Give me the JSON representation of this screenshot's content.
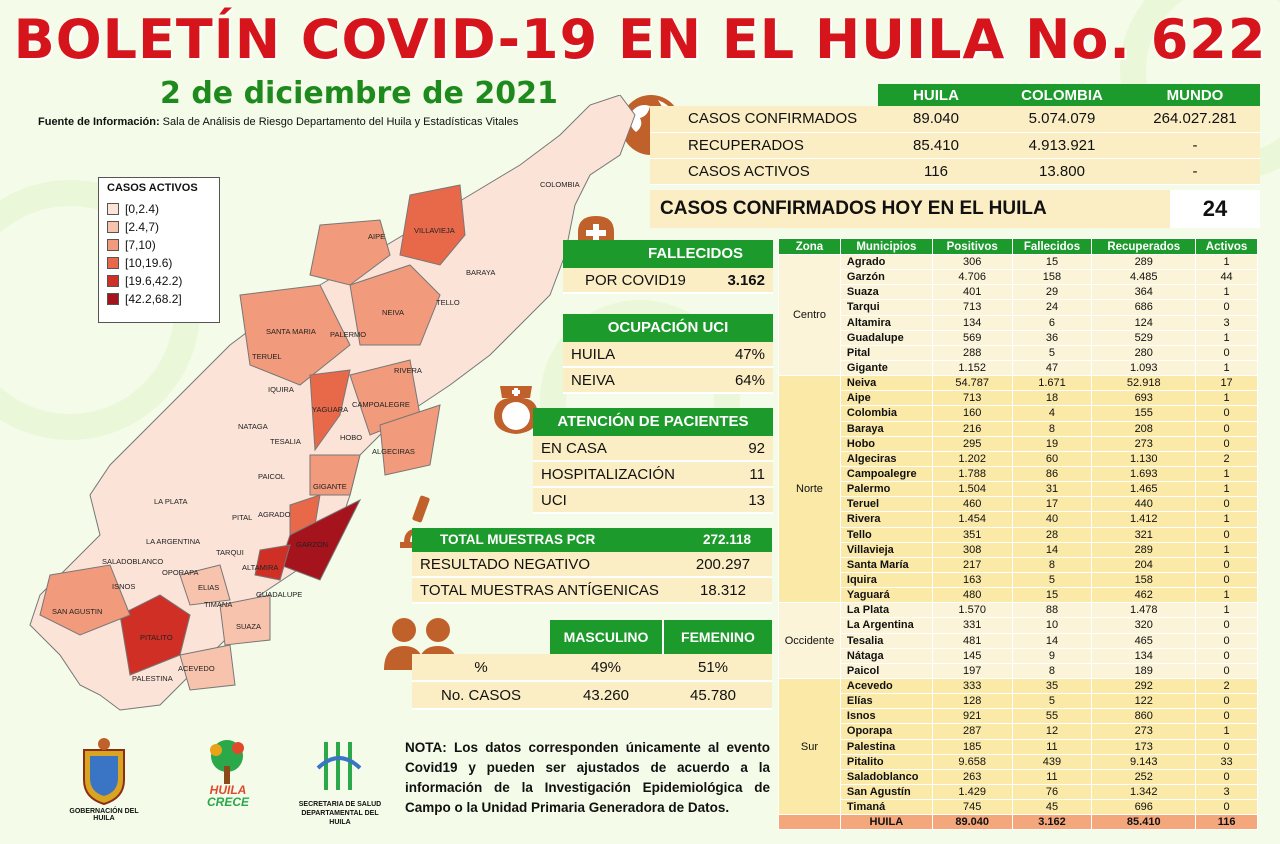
{
  "title": "BOLETÍN COVID-19 EN EL HUILA No. 622",
  "date": "2 de diciembre de 2021",
  "source_label": "Fuente de Información:",
  "source_text": " Sala de Análisis de Riesgo Departamento del Huila y Estadísticas Vitales",
  "summary": {
    "headers": [
      "HUILA",
      "COLOMBIA",
      "MUNDO"
    ],
    "rows": [
      {
        "label": "CASOS CONFIRMADOS",
        "huila": "89.040",
        "colombia": "5.074.079",
        "mundo": "264.027.281"
      },
      {
        "label": "RECUPERADOS",
        "huila": "85.410",
        "colombia": "4.913.921",
        "mundo": "-"
      },
      {
        "label": "CASOS ACTIVOS",
        "huila": "116",
        "colombia": "13.800",
        "mundo": "-"
      }
    ]
  },
  "today": {
    "label": "CASOS CONFIRMADOS HOY EN EL HUILA",
    "value": "24"
  },
  "fallecidos": {
    "title": "FALLECIDOS",
    "label": "POR COVID19",
    "value": "3.162"
  },
  "uci": {
    "title": "OCUPACIÓN UCI",
    "rows": [
      {
        "label": "HUILA",
        "value": "47%"
      },
      {
        "label": "NEIVA",
        "value": "64%"
      }
    ]
  },
  "atencion": {
    "title": "ATENCIÓN DE PACIENTES",
    "rows": [
      {
        "label": "EN CASA",
        "value": "92"
      },
      {
        "label": "HOSPITALIZACIÓN",
        "value": "11"
      },
      {
        "label": "UCI",
        "value": "13"
      }
    ]
  },
  "pcr": {
    "title": "TOTAL MUESTRAS PCR",
    "title_value": "272.118",
    "rows": [
      {
        "label": "RESULTADO NEGATIVO",
        "value": "200.297"
      },
      {
        "label": "TOTAL MUESTRAS ANTÍGENICAS",
        "value": "18.312"
      }
    ]
  },
  "gender": {
    "headers": [
      "MASCULINO",
      "FEMENINO"
    ],
    "rows": [
      {
        "label": "%",
        "m": "49%",
        "f": "51%"
      },
      {
        "label": "No. CASOS",
        "m": "43.260",
        "f": "45.780"
      }
    ]
  },
  "legend": {
    "title": "CASOS ACTIVOS",
    "items": [
      {
        "label": "[0,2.4)",
        "color": "#fbe3d8"
      },
      {
        "label": "[2.4,7)",
        "color": "#f7c3ad"
      },
      {
        "label": "[7,10)",
        "color": "#f19a7c"
      },
      {
        "label": "[10,19.6)",
        "color": "#e8694a"
      },
      {
        "label": "[19.6,42.2)",
        "color": "#cf2f25"
      },
      {
        "label": "[42.2,68.2]",
        "color": "#a5141c"
      }
    ]
  },
  "map_labels": [
    "COLOMBIA",
    "VILLAVIEJA",
    "AIPE",
    "BARAYA",
    "TELLO",
    "NEIVA",
    "SANTA MARIA",
    "PALERMO",
    "TERUEL",
    "RIVERA",
    "IQUIRA",
    "YAGUARA",
    "CAMPOALEGRE",
    "NATAGA",
    "TESALIA",
    "HOBO",
    "ALGECIRAS",
    "PAICOL",
    "GIGANTE",
    "LA PLATA",
    "AGRADO",
    "PITAL",
    "LA ARGENTINA",
    "GARZON",
    "SALADOBLANCO",
    "TARQUI",
    "OPORAPA",
    "ALTAMIRA",
    "ISNOS",
    "ELIAS",
    "SAN AGUSTIN",
    "TIMANA",
    "GUADALUPE",
    "SUAZA",
    "PITALITO",
    "ACEVEDO",
    "PALESTINA"
  ],
  "note": "NOTA: Los datos corresponden únicamente al evento Covid19 y pueden ser ajustados de acuerdo a la información de la Investigación Epidemiológica de Campo o la Unidad Primaria Generadora de Datos.",
  "logos": {
    "gob": "GOBERNACIÓN DEL HUILA",
    "crece1": "HUILA",
    "crece2": "CRECE",
    "sec1": "SECRETARIA DE SALUD",
    "sec2": "DEPARTAMENTAL DEL HUILA"
  },
  "zone_table": {
    "headers": [
      "Zona",
      "Municipios",
      "Positivos",
      "Fallecidos",
      "Recuperados",
      "Activos"
    ],
    "zones": [
      {
        "name": "Centro",
        "cls": "zc",
        "rows": [
          [
            "Agrado",
            "306",
            "15",
            "289",
            "1"
          ],
          [
            "Garzón",
            "4.706",
            "158",
            "4.485",
            "44"
          ],
          [
            "Suaza",
            "401",
            "29",
            "364",
            "1"
          ],
          [
            "Tarqui",
            "713",
            "24",
            "686",
            "0"
          ],
          [
            "Altamira",
            "134",
            "6",
            "124",
            "3"
          ],
          [
            "Guadalupe",
            "569",
            "36",
            "529",
            "1"
          ],
          [
            "Pital",
            "288",
            "5",
            "280",
            "0"
          ],
          [
            "Gigante",
            "1.152",
            "47",
            "1.093",
            "1"
          ]
        ]
      },
      {
        "name": "Norte",
        "cls": "zn",
        "rows": [
          [
            "Neiva",
            "54.787",
            "1.671",
            "52.918",
            "17"
          ],
          [
            "Aipe",
            "713",
            "18",
            "693",
            "1"
          ],
          [
            "Colombia",
            "160",
            "4",
            "155",
            "0"
          ],
          [
            "Baraya",
            "216",
            "8",
            "208",
            "0"
          ],
          [
            "Hobo",
            "295",
            "19",
            "273",
            "0"
          ],
          [
            "Algeciras",
            "1.202",
            "60",
            "1.130",
            "2"
          ],
          [
            "Campoalegre",
            "1.788",
            "86",
            "1.693",
            "1"
          ],
          [
            "Palermo",
            "1.504",
            "31",
            "1.465",
            "1"
          ],
          [
            "Teruel",
            "460",
            "17",
            "440",
            "0"
          ],
          [
            "Rivera",
            "1.454",
            "40",
            "1.412",
            "1"
          ],
          [
            "Tello",
            "351",
            "28",
            "321",
            "0"
          ],
          [
            "Villavieja",
            "308",
            "14",
            "289",
            "1"
          ],
          [
            "Santa María",
            "217",
            "8",
            "204",
            "0"
          ],
          [
            "Iquira",
            "163",
            "5",
            "158",
            "0"
          ],
          [
            "Yaguará",
            "480",
            "15",
            "462",
            "1"
          ]
        ]
      },
      {
        "name": "Occidente",
        "cls": "zo",
        "rows": [
          [
            "La Plata",
            "1.570",
            "88",
            "1.478",
            "1"
          ],
          [
            "La Argentina",
            "331",
            "10",
            "320",
            "0"
          ],
          [
            "Tesalia",
            "481",
            "14",
            "465",
            "0"
          ],
          [
            "Nátaga",
            "145",
            "9",
            "134",
            "0"
          ],
          [
            "Paicol",
            "197",
            "8",
            "189",
            "0"
          ]
        ]
      },
      {
        "name": "Sur",
        "cls": "zs",
        "rows": [
          [
            "Acevedo",
            "333",
            "35",
            "292",
            "2"
          ],
          [
            "Elías",
            "128",
            "5",
            "122",
            "0"
          ],
          [
            "Isnos",
            "921",
            "55",
            "860",
            "0"
          ],
          [
            "Oporapa",
            "287",
            "12",
            "273",
            "1"
          ],
          [
            "Palestina",
            "185",
            "11",
            "173",
            "0"
          ],
          [
            "Pitalito",
            "9.658",
            "439",
            "9.143",
            "33"
          ],
          [
            "Saladoblanco",
            "263",
            "11",
            "252",
            "0"
          ],
          [
            "San Agustín",
            "1.429",
            "76",
            "1.342",
            "3"
          ],
          [
            "Timaná",
            "745",
            "45",
            "696",
            "0"
          ]
        ]
      }
    ],
    "total": [
      "HUILA",
      "89.040",
      "3.162",
      "85.410",
      "116"
    ]
  }
}
